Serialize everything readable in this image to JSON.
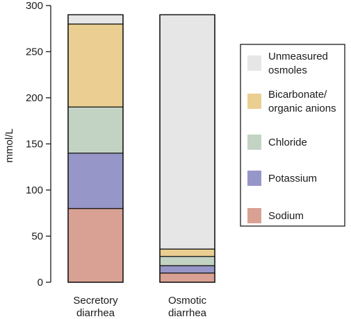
{
  "chart_data": {
    "type": "bar",
    "stacked": true,
    "title": "",
    "xlabel": "",
    "ylabel": "mmol/L",
    "ylim": [
      0,
      300
    ],
    "yticks": [
      0,
      50,
      100,
      150,
      200,
      250,
      300
    ],
    "categories": [
      [
        "Secretory",
        "diarrhea"
      ],
      [
        "Osmotic",
        "diarrhea"
      ]
    ],
    "series": [
      {
        "name": "Sodium",
        "label_lines": [
          "Sodium"
        ],
        "color": "#d9a193",
        "values": [
          80,
          10
        ]
      },
      {
        "name": "Potassium",
        "label_lines": [
          "Potassium"
        ],
        "color": "#9696c8",
        "values": [
          60,
          8
        ]
      },
      {
        "name": "Chloride",
        "label_lines": [
          "Chloride"
        ],
        "color": "#c3d3c3",
        "values": [
          50,
          10
        ]
      },
      {
        "name": "Bicarbonate/ organic anions",
        "label_lines": [
          "Bicarbonate/",
          "organic anions"
        ],
        "color": "#ebcf92",
        "values": [
          90,
          8
        ]
      },
      {
        "name": "Unmeasured osmoles",
        "label_lines": [
          "Unmeasured",
          "osmoles"
        ],
        "color": "#e6e6e6",
        "values": [
          10,
          254
        ]
      }
    ],
    "legend_position": "right",
    "legend_order": [
      "Unmeasured osmoles",
      "Bicarbonate/ organic anions",
      "Chloride",
      "Potassium",
      "Sodium"
    ],
    "grid": false
  }
}
